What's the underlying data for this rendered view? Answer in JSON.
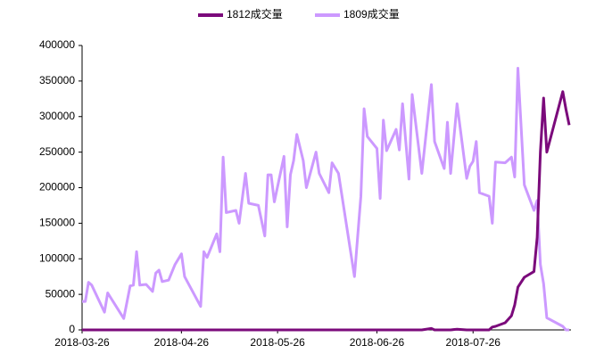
{
  "chart_data": {
    "type": "line",
    "x": [
      "2018-03-26",
      "2018-03-27",
      "2018-03-28",
      "2018-03-29",
      "2018-04-02",
      "2018-04-03",
      "2018-04-08",
      "2018-04-10",
      "2018-04-11",
      "2018-04-12",
      "2018-04-13",
      "2018-04-15",
      "2018-04-17",
      "2018-04-18",
      "2018-04-19",
      "2018-04-20",
      "2018-04-22",
      "2018-04-24",
      "2018-04-26",
      "2018-04-27",
      "2018-05-02",
      "2018-05-03",
      "2018-05-04",
      "2018-05-07",
      "2018-05-08",
      "2018-05-09",
      "2018-05-10",
      "2018-05-13",
      "2018-05-14",
      "2018-05-16",
      "2018-05-17",
      "2018-05-20",
      "2018-05-22",
      "2018-05-23",
      "2018-05-24",
      "2018-05-25",
      "2018-05-28",
      "2018-05-29",
      "2018-05-30",
      "2018-05-31",
      "2018-06-01",
      "2018-06-03",
      "2018-06-04",
      "2018-06-07",
      "2018-06-08",
      "2018-06-11",
      "2018-06-12",
      "2018-06-14",
      "2018-06-19",
      "2018-06-21",
      "2018-06-22",
      "2018-06-23",
      "2018-06-26",
      "2018-06-27",
      "2018-06-28",
      "2018-06-29",
      "2018-07-02",
      "2018-07-03",
      "2018-07-04",
      "2018-07-06",
      "2018-07-07",
      "2018-07-10",
      "2018-07-13",
      "2018-07-14",
      "2018-07-17",
      "2018-07-18",
      "2018-07-19",
      "2018-07-21",
      "2018-07-24",
      "2018-07-25",
      "2018-07-26",
      "2018-07-27",
      "2018-07-28",
      "2018-07-31",
      "2018-08-01",
      "2018-08-02",
      "2018-08-05",
      "2018-08-07",
      "2018-08-08",
      "2018-08-09",
      "2018-08-11",
      "2018-08-14",
      "2018-08-15",
      "2018-08-16",
      "2018-08-17",
      "2018-08-18",
      "2018-08-23",
      "2018-08-24",
      "2018-08-25"
    ],
    "series": [
      {
        "name": "1812成交量",
        "color": "#7b0a7b",
        "values": [
          0,
          0,
          0,
          0,
          0,
          0,
          0,
          0,
          0,
          0,
          0,
          0,
          0,
          0,
          0,
          0,
          0,
          0,
          0,
          0,
          0,
          0,
          0,
          0,
          0,
          0,
          0,
          0,
          0,
          0,
          0,
          0,
          0,
          0,
          0,
          0,
          0,
          0,
          0,
          0,
          0,
          0,
          0,
          0,
          0,
          0,
          0,
          0,
          0,
          0,
          0,
          0,
          0,
          0,
          0,
          0,
          0,
          0,
          0,
          0,
          0,
          0,
          2000,
          0,
          0,
          0,
          0,
          1000,
          0,
          0,
          0,
          0,
          0,
          0,
          4000,
          5000,
          10000,
          20000,
          35000,
          60000,
          74000,
          82000,
          130000,
          250000,
          326000,
          250000,
          335000,
          310000,
          288000
        ]
      },
      {
        "name": "1809成交量",
        "color": "#cc99ff",
        "values": [
          40000,
          40000,
          67000,
          63000,
          25000,
          52000,
          16000,
          62000,
          63000,
          110000,
          63000,
          64000,
          54000,
          80000,
          84000,
          68000,
          70000,
          92000,
          107000,
          75000,
          33000,
          110000,
          102000,
          135000,
          110000,
          243000,
          165000,
          168000,
          150000,
          220000,
          178000,
          175000,
          132000,
          218000,
          218000,
          180000,
          244000,
          145000,
          218000,
          238000,
          275000,
          238000,
          200000,
          250000,
          220000,
          193000,
          235000,
          220000,
          75000,
          188000,
          311000,
          272000,
          255000,
          185000,
          295000,
          252000,
          282000,
          253000,
          318000,
          212000,
          331000,
          220000,
          345000,
          265000,
          227000,
          292000,
          220000,
          318000,
          213000,
          230000,
          237000,
          265000,
          193000,
          188000,
          150000,
          236000,
          235000,
          243000,
          215000,
          368000,
          204000,
          168000,
          182000,
          92000,
          65000,
          17000,
          5000,
          0,
          0
        ]
      }
    ],
    "xlim": [
      "2018-03-26",
      "2018-08-25"
    ],
    "xticks": [
      "2018-03-26",
      "2018-04-26",
      "2018-05-26",
      "2018-06-26",
      "2018-07-26"
    ],
    "ylim": [
      0,
      400000
    ],
    "yticks": [
      0,
      50000,
      100000,
      150000,
      200000,
      250000,
      300000,
      350000,
      400000
    ],
    "legend": "top",
    "grid": false
  }
}
